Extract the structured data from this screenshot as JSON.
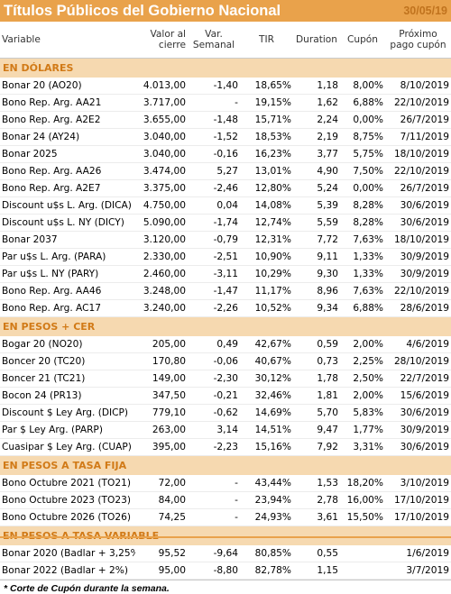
{
  "header": {
    "title": "Títulos Públicos del Gobierno Nacional",
    "date": "30/05/19"
  },
  "columns": {
    "variable": "Variable",
    "valor": [
      "Valor al",
      "cierre"
    ],
    "var": [
      "Var.",
      "Semanal"
    ],
    "tir": "TIR",
    "duration": "Duration",
    "cupon": "Cupón",
    "proximo": [
      "Próximo",
      "pago cupón"
    ]
  },
  "sections": [
    {
      "title": "EN DÓLARES",
      "rows": [
        [
          "Bonar 20 (AO20)",
          "4.013,00",
          "-1,40",
          "18,65%",
          "1,18",
          "8,00%",
          "8/10/2019"
        ],
        [
          "Bono Rep. Arg. AA21",
          "3.717,00",
          "-",
          "19,15%",
          "1,62",
          "6,88%",
          "22/10/2019"
        ],
        [
          "Bono Rep. Arg. A2E2",
          "3.655,00",
          "-1,48",
          "15,71%",
          "2,24",
          "0,00%",
          "26/7/2019"
        ],
        [
          "Bonar 24 (AY24)",
          "3.040,00",
          "-1,52",
          "18,53%",
          "2,19",
          "8,75%",
          "7/11/2019"
        ],
        [
          "Bonar 2025",
          "3.040,00",
          "-0,16",
          "16,23%",
          "3,77",
          "5,75%",
          "18/10/2019"
        ],
        [
          "Bono Rep. Arg. AA26",
          "3.474,00",
          "5,27",
          "13,01%",
          "4,90",
          "7,50%",
          "22/10/2019"
        ],
        [
          "Bono Rep. Arg. A2E7",
          "3.375,00",
          "-2,46",
          "12,80%",
          "5,24",
          "0,00%",
          "26/7/2019"
        ],
        [
          "Discount u$s L. Arg. (DICA)",
          "4.750,00",
          "0,04",
          "14,08%",
          "5,39",
          "8,28%",
          "30/6/2019"
        ],
        [
          "Discount u$s L. NY (DICY)",
          "5.090,00",
          "-1,74",
          "12,74%",
          "5,59",
          "8,28%",
          "30/6/2019"
        ],
        [
          "Bonar 2037",
          "3.120,00",
          "-0,79",
          "12,31%",
          "7,72",
          "7,63%",
          "18/10/2019"
        ],
        [
          "Par u$s L. Arg. (PARA)",
          "2.330,00",
          "-2,51",
          "10,90%",
          "9,11",
          "1,33%",
          "30/9/2019"
        ],
        [
          "Par u$s L. NY (PARY)",
          "2.460,00",
          "-3,11",
          "10,29%",
          "9,30",
          "1,33%",
          "30/9/2019"
        ],
        [
          "Bono Rep. Arg. AA46",
          "3.248,00",
          "-1,47",
          "11,17%",
          "8,96",
          "7,63%",
          "22/10/2019"
        ],
        [
          "Bono Rep. Arg. AC17",
          "3.240,00",
          "-2,26",
          "10,52%",
          "9,34",
          "6,88%",
          "28/6/2019"
        ]
      ]
    },
    {
      "title": "EN PESOS + CER",
      "rows": [
        [
          "Bogar 20 (NO20)",
          "205,00",
          "0,49",
          "42,67%",
          "0,59",
          "2,00%",
          "4/6/2019"
        ],
        [
          "Boncer 20 (TC20)",
          "170,80",
          "-0,06",
          "40,67%",
          "0,73",
          "2,25%",
          "28/10/2019"
        ],
        [
          "Boncer 21 (TC21)",
          "149,00",
          "-2,30",
          "30,12%",
          "1,78",
          "2,50%",
          "22/7/2019"
        ],
        [
          "Bocon 24 (PR13)",
          "347,50",
          "-0,21",
          "32,46%",
          "1,81",
          "2,00%",
          "15/6/2019"
        ],
        [
          "Discount $ Ley Arg. (DICP)",
          "779,10",
          "-0,62",
          "14,69%",
          "5,70",
          "5,83%",
          "30/6/2019"
        ],
        [
          "Par $ Ley Arg. (PARP)",
          "263,00",
          "3,14",
          "14,51%",
          "9,47",
          "1,77%",
          "30/9/2019"
        ],
        [
          "Cuasipar $ Ley Arg. (CUAP)",
          "395,00",
          "-2,23",
          "15,16%",
          "7,92",
          "3,31%",
          "30/6/2019"
        ]
      ]
    },
    {
      "title": "EN PESOS A TASA FIJA",
      "rows": [
        [
          "Bono Octubre 2021 (TO21)",
          "72,00",
          "-",
          "43,44%",
          "1,53",
          "18,20%",
          "3/10/2019"
        ],
        [
          "Bono Octubre 2023 (TO23)",
          "84,00",
          "-",
          "23,94%",
          "2,78",
          "16,00%",
          "17/10/2019"
        ],
        [
          "Bono Octubre 2026 (TO26)",
          "74,25",
          "-",
          "24,93%",
          "3,61",
          "15,50%",
          "17/10/2019"
        ]
      ]
    },
    {
      "title": "EN PESOS A TASA VARIABLE",
      "rows": [
        [
          "Bonar 2020 (Badlar + 3,25%",
          "95,52",
          "-9,64",
          "80,85%",
          "0,55",
          "",
          "1/6/2019"
        ],
        [
          "Bonar 2022 (Badlar + 2%)",
          "95,00",
          "-8,80",
          "82,78%",
          "1,15",
          "",
          "3/7/2019"
        ]
      ]
    }
  ],
  "footnote": "* Corte de Cupón durante la semana."
}
